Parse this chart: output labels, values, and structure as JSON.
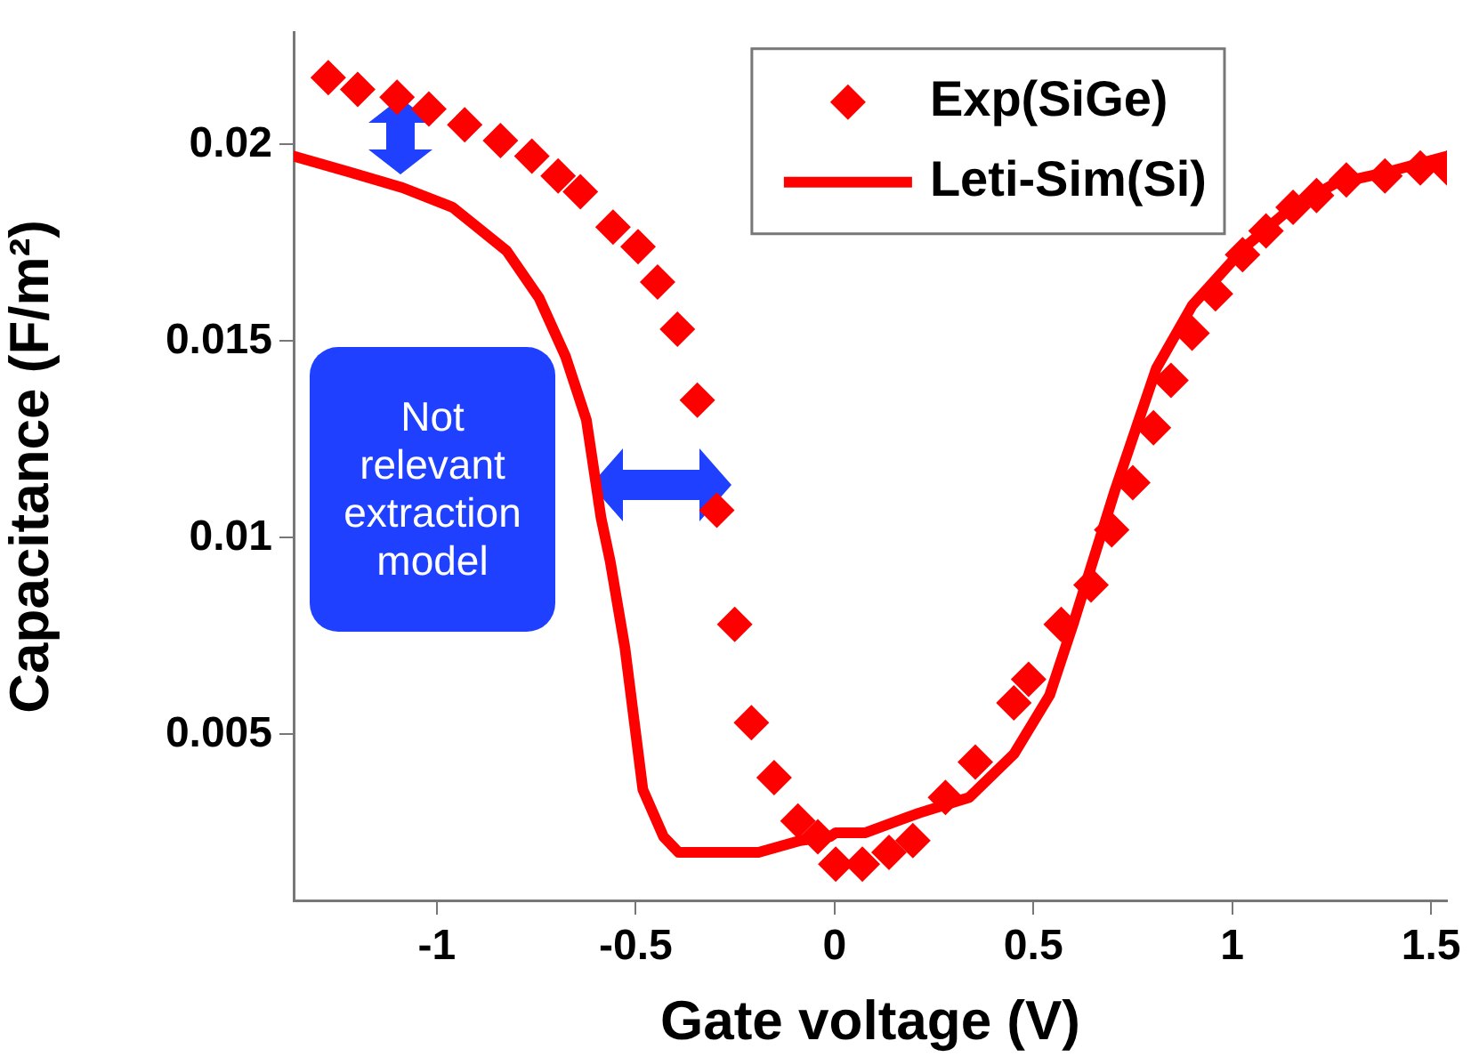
{
  "chart_data": {
    "type": "scatter",
    "xlabel": "Gate voltage (V)",
    "ylabel": "Capacitance (F/m²)",
    "xlim": [
      -1.36,
      1.54
    ],
    "ylim": [
      0.00078,
      0.02284
    ],
    "xticks": [
      -1,
      -0.5,
      0,
      0.5,
      1,
      1.5
    ],
    "yticks": [
      0.005,
      0.01,
      0.015,
      0.02
    ],
    "grid": false,
    "legend": "top right",
    "marker": "diamond",
    "annotations": [
      "Not relevant extraction model"
    ],
    "series": [
      {
        "name": "Exp(SiGe)",
        "color": "#ff0000",
        "x": [
          -1.273,
          -1.199,
          -1.1,
          -1.02,
          -0.93,
          -0.84,
          -0.761,
          -0.695,
          -0.639,
          -0.557,
          -0.494,
          -0.445,
          -0.395,
          -0.345,
          -0.296,
          -0.251,
          -0.209,
          -0.152,
          -0.092,
          -0.042,
          0.003,
          0.07,
          0.137,
          0.197,
          0.279,
          0.354,
          0.451,
          0.488,
          0.57,
          0.645,
          0.697,
          0.75,
          0.802,
          0.846,
          0.899,
          0.958,
          1.026,
          1.085,
          1.153,
          1.212,
          1.287,
          1.384,
          1.473,
          1.54
        ],
        "values": [
          0.0217,
          0.0214,
          0.0212,
          0.0209,
          0.0205,
          0.0201,
          0.0197,
          0.0192,
          0.0188,
          0.0179,
          0.0174,
          0.0165,
          0.0153,
          0.0135,
          0.0107,
          0.0078,
          0.0053,
          0.0039,
          0.0028,
          0.0024,
          0.0017,
          0.0017,
          0.002,
          0.0023,
          0.0034,
          0.0043,
          0.0058,
          0.0064,
          0.0078,
          0.0088,
          0.0102,
          0.0114,
          0.0128,
          0.014,
          0.0152,
          0.0162,
          0.0172,
          0.0178,
          0.0184,
          0.0187,
          0.0191,
          0.0192,
          0.0194,
          0.0194
        ]
      },
      {
        "name": "Leti-Sim(Si)",
        "type": "line",
        "color": "#ff0000",
        "marker": "none",
        "line_style": "solid",
        "x": [
          -1.36,
          -1.221,
          -1.086,
          -0.96,
          -0.825,
          -0.743,
          -0.676,
          -0.624,
          -0.587,
          -0.564,
          -0.527,
          -0.482,
          -0.43,
          -0.392,
          -0.191,
          -0.086,
          -0.012,
          0.003,
          0.078,
          0.212,
          0.339,
          0.451,
          0.541,
          0.6,
          0.705,
          0.809,
          0.899,
          1.033,
          1.138,
          1.257,
          1.391,
          1.54
        ],
        "values": [
          0.0197,
          0.0193,
          0.0189,
          0.0184,
          0.0173,
          0.0161,
          0.0146,
          0.013,
          0.0105,
          0.0094,
          0.0072,
          0.0036,
          0.0024,
          0.002,
          0.002,
          0.0023,
          0.0024,
          0.0025,
          0.0025,
          0.003,
          0.0034,
          0.0045,
          0.006,
          0.0078,
          0.0112,
          0.0143,
          0.0159,
          0.0174,
          0.0183,
          0.019,
          0.0193,
          0.0197
        ]
      }
    ]
  }
}
